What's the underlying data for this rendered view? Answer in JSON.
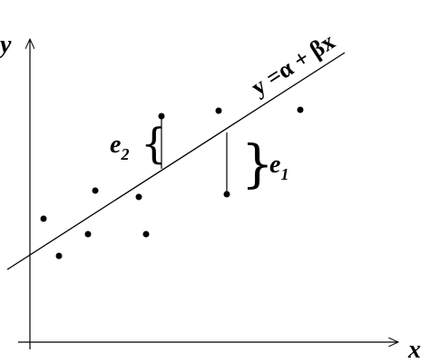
{
  "axes": {
    "y_label": "y",
    "x_label": "x"
  },
  "regression_line": {
    "label": "y =α + βx"
  },
  "residuals": [
    {
      "letter": "e",
      "subscript": "2"
    },
    {
      "letter": "e",
      "subscript": "1"
    }
  ]
}
